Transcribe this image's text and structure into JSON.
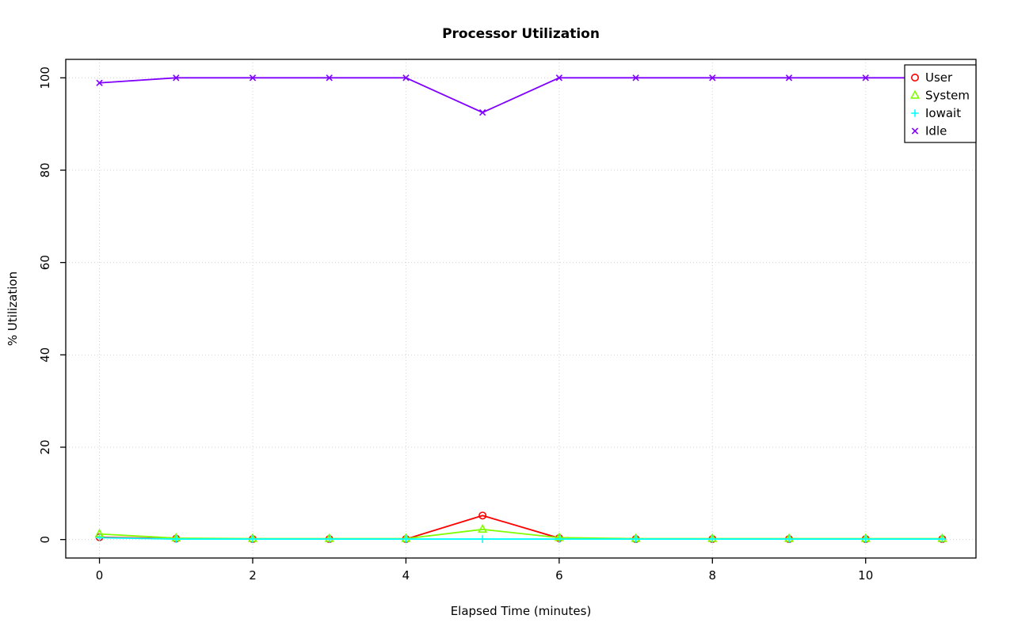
{
  "chart_data": {
    "type": "line",
    "title": "Processor Utilization",
    "xlabel": "Elapsed Time (minutes)",
    "ylabel": "% Utilization",
    "xlim": [
      0,
      11
    ],
    "ylim": [
      0,
      100
    ],
    "x_ticks": [
      0,
      2,
      4,
      6,
      8,
      10
    ],
    "y_ticks": [
      0,
      20,
      40,
      60,
      80,
      100
    ],
    "grid": true,
    "grid_color": "#d3d3d3",
    "box_color": "#000000",
    "legend_position": "top-right",
    "x": [
      0,
      1,
      2,
      3,
      4,
      5,
      6,
      7,
      8,
      9,
      10,
      11
    ],
    "series": [
      {
        "name": "User",
        "color": "#ff0000",
        "marker": "circle",
        "values": [
          0.5,
          0.2,
          0.1,
          0.1,
          0.1,
          5.2,
          0.3,
          0.1,
          0.1,
          0.1,
          0.1,
          0.1
        ]
      },
      {
        "name": "System",
        "color": "#80ff00",
        "marker": "triangle",
        "values": [
          1.2,
          0.3,
          0.2,
          0.2,
          0.2,
          2.2,
          0.4,
          0.2,
          0.2,
          0.2,
          0.2,
          0.2
        ]
      },
      {
        "name": "Iowait",
        "color": "#00ffff",
        "marker": "plus",
        "values": [
          0.4,
          0.1,
          0.1,
          0.1,
          0.1,
          0.1,
          0.1,
          0.1,
          0.1,
          0.1,
          0.1,
          0.1
        ]
      },
      {
        "name": "Idle",
        "color": "#8000ff",
        "marker": "x",
        "values": [
          98.9,
          100,
          100,
          100,
          100,
          92.5,
          100,
          100,
          100,
          100,
          100,
          100
        ]
      }
    ]
  }
}
